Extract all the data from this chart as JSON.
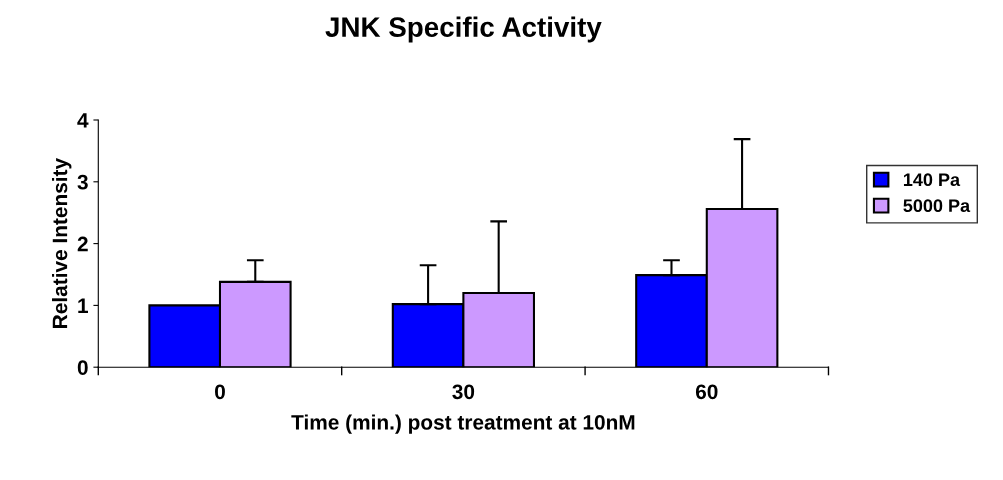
{
  "chart_data": {
    "type": "bar",
    "title": "JNK Specific Activity",
    "xlabel": "Time (min.) post treatment at 10nM",
    "ylabel": "Relative Intensity",
    "categories": [
      "0",
      "30",
      "60"
    ],
    "series": [
      {
        "name": "140 Pa",
        "color": "#0000ff",
        "values": [
          1.0,
          1.02,
          1.49
        ],
        "errors": [
          null,
          [
            1.02,
            1.65
          ],
          [
            1.49,
            1.73
          ]
        ]
      },
      {
        "name": "5000 Pa",
        "color": "#cc99ff",
        "values": [
          1.38,
          1.2,
          2.56
        ],
        "errors": [
          [
            1.38,
            1.73
          ],
          [
            1.2,
            2.36
          ],
          [
            2.56,
            3.69
          ]
        ]
      }
    ],
    "ylim": [
      0,
      4
    ],
    "yticks": [
      0,
      1,
      2,
      3,
      4
    ],
    "grid": false,
    "legend": "right"
  }
}
